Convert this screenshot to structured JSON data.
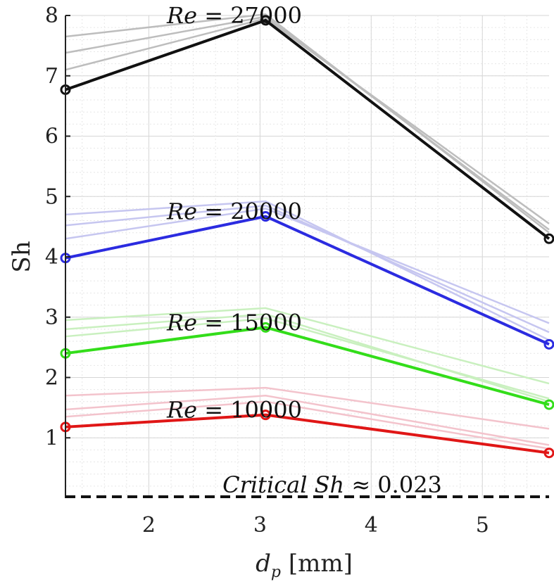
{
  "chart_data": {
    "type": "line",
    "title": "",
    "xlabel": "d_p [mm]",
    "xlabel_main": "d",
    "xlabel_sub": "p",
    "xlabel_unit": "[mm]",
    "ylabel": "Sh",
    "xlim": [
      1.25,
      5.6
    ],
    "ylim": [
      0,
      8
    ],
    "xticks": [
      2,
      3,
      4,
      5
    ],
    "yticks": [
      1,
      2,
      3,
      4,
      5,
      6,
      7,
      8
    ],
    "x": [
      1.25,
      3.05,
      5.6
    ],
    "grid": true,
    "series": [
      {
        "name": "Re = 27000",
        "label_re": "Re",
        "label_eq": "= 27000",
        "color": "#111111",
        "faint_color": "#bdbdbd",
        "values": [
          6.77,
          7.92,
          4.3
        ],
        "faint": [
          [
            7.1,
            7.95,
            4.55
          ],
          [
            7.38,
            7.98,
            4.45
          ],
          [
            7.65,
            8.02,
            4.4
          ]
        ]
      },
      {
        "name": "Re = 20000",
        "label_re": "Re",
        "label_eq": "= 20000",
        "color": "#2b2be0",
        "faint_color": "#c6c6f0",
        "values": [
          3.98,
          4.67,
          2.55
        ],
        "faint": [
          [
            4.3,
            4.8,
            2.9
          ],
          [
            4.52,
            4.85,
            2.75
          ],
          [
            4.7,
            4.92,
            2.62
          ]
        ]
      },
      {
        "name": "Re = 15000",
        "label_re": "Re",
        "label_eq": "= 15000",
        "color": "#33dd1a",
        "faint_color": "#c9f0bf",
        "values": [
          2.4,
          2.83,
          1.55
        ],
        "faint": [
          [
            2.68,
            2.98,
            1.65
          ],
          [
            2.8,
            3.05,
            1.6
          ],
          [
            2.95,
            3.15,
            1.9
          ]
        ]
      },
      {
        "name": "Re = 10000",
        "label_re": "Re",
        "label_eq": "= 10000",
        "color": "#e01616",
        "faint_color": "#f3c3cc",
        "values": [
          1.18,
          1.38,
          0.75
        ],
        "faint": [
          [
            1.35,
            1.6,
            0.82
          ],
          [
            1.47,
            1.7,
            0.88
          ],
          [
            1.7,
            1.83,
            1.15
          ]
        ]
      }
    ],
    "critical_line": {
      "value": 0.023,
      "label_prefix": "Critical",
      "label_italic": "Sh",
      "label_approx": "≈ 0.023"
    }
  }
}
